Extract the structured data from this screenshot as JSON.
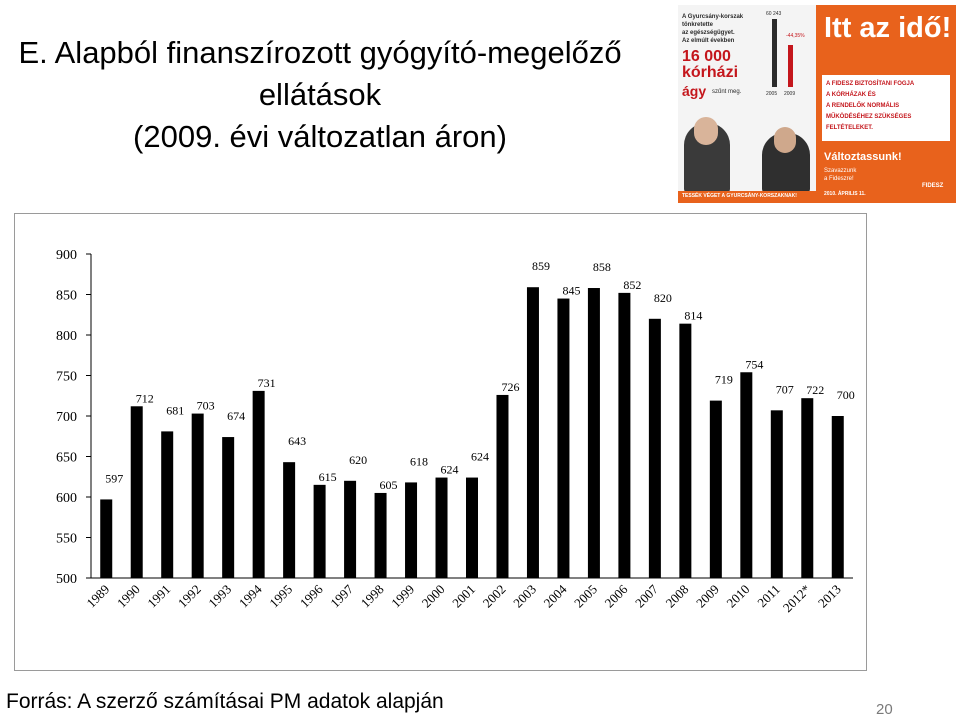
{
  "slide": {
    "title_lines": [
      "E. Alapból finanszírozott gyógyító-megelőző",
      "ellátások",
      "(2009. évi változatlan áron)"
    ],
    "source": "Forrás: A szerző számításai PM adatok alapján",
    "page_number": "20"
  },
  "poster": {
    "headline": "Itt az idő!",
    "left_lines": [
      "A Gyurcsány-korszak",
      "tönkretette",
      "az egészségügyet.",
      "Az elmúlt években"
    ],
    "big_number": "16 000",
    "big_word": "kórházi",
    "big_word2": "ágy",
    "big_suffix": "szűnt meg.",
    "stat_top": "60 243",
    "stat_percent": "-44,35%",
    "stat_years": [
      "2005",
      "2009"
    ],
    "right_lines": [
      "A FIDESZ BIZTOSÍTANI FOGJA",
      "A KÓRHÁZAK ÉS",
      "A RENDELŐK NORMÁLIS",
      "MŰKÖDÉSÉHEZ SZÜKSÉGES",
      "FELTÉTELEKET."
    ],
    "slogan": "Változtassunk!",
    "slogan_sub": [
      "Szavazzunk",
      "a Fideszre!"
    ],
    "date": "2010. ÁPRILIS 11.",
    "bottom_strip": "TESSÉK VÉGET A GYURCSÁNY-KORSZAKNAK!",
    "party": "FIDESZ",
    "colors": {
      "orange": "#e8621c",
      "red": "#c4161c",
      "dark": "#2b2b2b"
    }
  },
  "chart_data": {
    "type": "bar",
    "title": "",
    "xlabel": "",
    "ylabel": "",
    "ylim": [
      500,
      900
    ],
    "yticks": [
      500,
      550,
      600,
      650,
      700,
      750,
      800,
      850,
      900
    ],
    "grid": false,
    "legend": "none",
    "bar_color": "#000000",
    "categories": [
      "1989",
      "1990",
      "1991",
      "1992",
      "1993",
      "1994",
      "1995",
      "1996",
      "1997",
      "1998",
      "1999",
      "2000",
      "2001",
      "2002",
      "2003",
      "2004",
      "2005",
      "2006",
      "2007",
      "2008",
      "2009",
      "2010",
      "2011",
      "2012*",
      "2013"
    ],
    "values": [
      597,
      712,
      681,
      703,
      674,
      731,
      643,
      615,
      620,
      605,
      618,
      624,
      624,
      726,
      859,
      845,
      858,
      852,
      820,
      814,
      719,
      754,
      707,
      722,
      700
    ],
    "data_labels": [
      "597",
      "712",
      "681",
      "703",
      "674",
      "731",
      "643",
      "615",
      "620",
      "605",
      "618",
      "624",
      "624",
      "726",
      "859",
      "845",
      "858",
      "852",
      "820",
      "814",
      "719",
      "754",
      "707",
      "722",
      "700"
    ]
  }
}
